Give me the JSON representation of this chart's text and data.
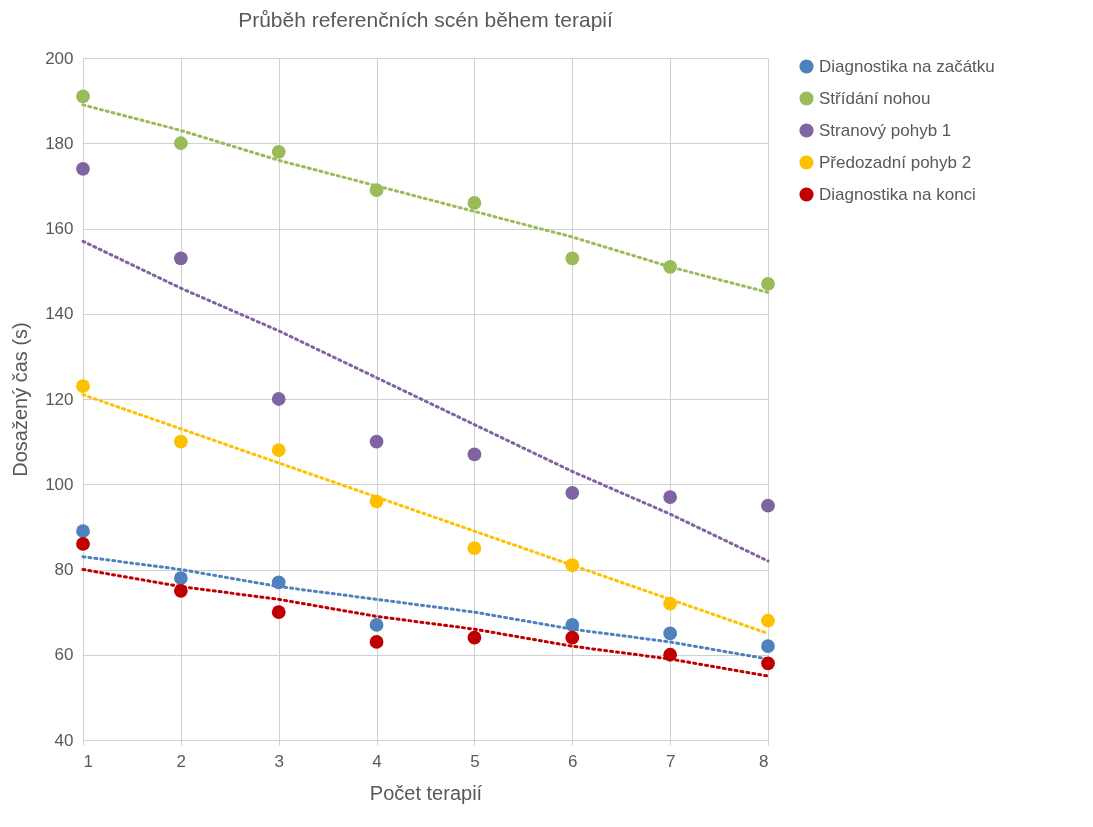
{
  "chart_data": {
    "type": "scatter",
    "title": "Průběh referenčních scén během terapií",
    "xlabel": "Počet terapií",
    "ylabel": "Dosažený čas (s)",
    "x": [
      1,
      2,
      3,
      4,
      5,
      6,
      7,
      8
    ],
    "xlim": [
      1,
      8
    ],
    "xticks": [
      1,
      2,
      3,
      4,
      5,
      6,
      7,
      8
    ],
    "ylim": [
      40,
      200
    ],
    "yticks": [
      40,
      60,
      80,
      100,
      120,
      140,
      160,
      180,
      200
    ],
    "grid": true,
    "legend": "right",
    "marker": "circle",
    "series": [
      {
        "name": "Diagnostika na začátku",
        "color": "#4f81bd",
        "values": [
          89,
          78,
          77,
          67,
          null,
          67,
          65,
          62
        ]
      },
      {
        "name": "Střídání nohou",
        "color": "#9bbb59",
        "values": [
          191,
          180,
          178,
          169,
          166,
          153,
          151,
          147
        ]
      },
      {
        "name": "Stranový pohyb 1",
        "color": "#8064a2",
        "values": [
          174,
          153,
          120,
          110,
          107,
          98,
          97,
          95
        ]
      },
      {
        "name": "Předozadní pohyb 2",
        "color": "#ffc000",
        "values": [
          123,
          110,
          108,
          96,
          85,
          81,
          72,
          68
        ]
      },
      {
        "name": "Diagnostika na konci",
        "color": "#c00000",
        "values": [
          86,
          75,
          70,
          63,
          64,
          64,
          60,
          58
        ]
      },
      {
        "type": "line",
        "color": "#4f81bd",
        "values": [
          83,
          80,
          76,
          73,
          70,
          66,
          63,
          59
        ],
        "line_style": "dotted",
        "marker": "none"
      },
      {
        "type": "line",
        "color": "#9bbb59",
        "values": [
          189,
          183,
          176,
          170,
          164,
          158,
          151,
          145
        ],
        "line_style": "dotted",
        "marker": "none"
      },
      {
        "type": "line",
        "color": "#8064a2",
        "values": [
          157,
          146,
          136,
          125,
          114,
          103,
          93,
          82
        ],
        "line_style": "dotted",
        "marker": "none"
      },
      {
        "type": "line",
        "color": "#ffc000",
        "values": [
          121,
          113,
          105,
          97,
          89,
          81,
          73,
          65
        ],
        "line_style": "dotted",
        "marker": "none"
      },
      {
        "type": "line",
        "color": "#c00000",
        "values": [
          80,
          76,
          73,
          69,
          66,
          62,
          59,
          55
        ],
        "line_style": "dotted",
        "marker": "none"
      }
    ]
  }
}
